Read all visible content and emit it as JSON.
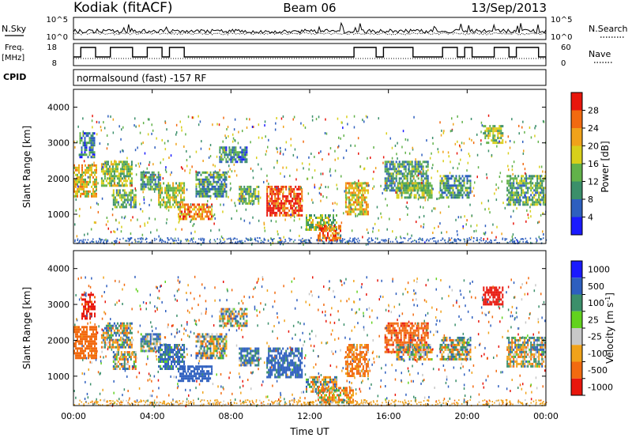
{
  "header": {
    "station": "Kodiak (fitACF)",
    "beam": "Beam 06",
    "date": "13/Sep/2013"
  },
  "summary_panels": {
    "nsky_label": "N.Sky",
    "nsearch_label": "N.Search",
    "freq_label_line1": "Freq.",
    "freq_label_line2": "[MHz]",
    "nave_label": "Nave",
    "cpid_label": "CPID",
    "cpid_value": "normalsound (fast) -157 RF",
    "noise_tick_top": "10^5",
    "noise_tick_bottom": "10^0",
    "freq_ticks": [
      "18",
      "8"
    ],
    "nave_ticks": [
      "60",
      "0"
    ]
  },
  "chart_data": [
    {
      "type": "heatmap",
      "panel": "power",
      "ylabel": "Slant Range [km]",
      "xlabel": "",
      "ylim": [
        180,
        4500
      ],
      "yticks": [
        "1000",
        "2000",
        "3000",
        "4000"
      ],
      "colorbar_label": "Power [dB]",
      "colorbar_ticks": [
        "4",
        "8",
        "12",
        "16",
        "20",
        "24",
        "28"
      ],
      "colorbar_range": [
        0,
        30
      ],
      "colors": [
        "#1a1aff",
        "#2e5fbf",
        "#3b8f6a",
        "#62b24a",
        "#d8cf1a",
        "#f0a21a",
        "#f26a10",
        "#e8160c"
      ],
      "patches": [
        {
          "t": [
            0.0,
            1.2
          ],
          "r": [
            1500,
            2400
          ],
          "v": 18
        },
        {
          "t": [
            0.3,
            1.1
          ],
          "r": [
            2600,
            3300
          ],
          "v": 8
        },
        {
          "t": [
            1.4,
            3.0
          ],
          "r": [
            1800,
            2500
          ],
          "v": 14
        },
        {
          "t": [
            2.0,
            3.2
          ],
          "r": [
            1200,
            1700
          ],
          "v": 12
        },
        {
          "t": [
            3.4,
            4.4
          ],
          "r": [
            1700,
            2200
          ],
          "v": 10
        },
        {
          "t": [
            4.3,
            5.6
          ],
          "r": [
            1200,
            1900
          ],
          "v": 16
        },
        {
          "t": [
            5.3,
            7.0
          ],
          "r": [
            900,
            1300
          ],
          "v": 22
        },
        {
          "t": [
            6.2,
            7.8
          ],
          "r": [
            1500,
            2200
          ],
          "v": 10
        },
        {
          "t": [
            7.4,
            8.8
          ],
          "r": [
            2500,
            2900
          ],
          "v": 8
        },
        {
          "t": [
            8.4,
            9.4
          ],
          "r": [
            1300,
            1800
          ],
          "v": 12
        },
        {
          "t": [
            9.8,
            11.6
          ],
          "r": [
            1000,
            1800
          ],
          "v": 27
        },
        {
          "t": [
            11.8,
            13.4
          ],
          "r": [
            600,
            1000
          ],
          "v": 14
        },
        {
          "t": [
            12.4,
            13.6
          ],
          "r": [
            300,
            700
          ],
          "v": 24
        },
        {
          "t": [
            13.8,
            15.0
          ],
          "r": [
            1000,
            1900
          ],
          "v": 18
        },
        {
          "t": [
            15.8,
            18.0
          ],
          "r": [
            1700,
            2500
          ],
          "v": 10
        },
        {
          "t": [
            16.4,
            18.2
          ],
          "r": [
            1500,
            1900
          ],
          "v": 14
        },
        {
          "t": [
            18.6,
            20.2
          ],
          "r": [
            1500,
            2100
          ],
          "v": 10
        },
        {
          "t": [
            20.8,
            21.8
          ],
          "r": [
            3000,
            3500
          ],
          "v": 14
        },
        {
          "t": [
            22.0,
            24.0
          ],
          "r": [
            1300,
            2100
          ],
          "v": 12
        }
      ]
    },
    {
      "type": "heatmap",
      "panel": "velocity",
      "ylabel": "Slant Range [km]",
      "xlabel": "Time UT",
      "ylim": [
        180,
        4500
      ],
      "yticks": [
        "1000",
        "2000",
        "3000",
        "4000"
      ],
      "xticks": [
        "00:00",
        "04:00",
        "08:00",
        "12:00",
        "16:00",
        "20:00",
        "00:00"
      ],
      "xlim_hours": [
        0,
        24
      ],
      "colorbar_label": "Velocity [m s^-1]",
      "colorbar_ticks": [
        "1000",
        "500",
        "100",
        "25",
        "-25",
        "-100",
        "-500",
        "-1000"
      ],
      "colors": [
        "#1a1aff",
        "#2e5fbf",
        "#3b8f6a",
        "#62d21e",
        "#c8c8c8",
        "#f0a21a",
        "#f26a10",
        "#e8160c"
      ],
      "patches": [
        {
          "t": [
            0.0,
            1.2
          ],
          "r": [
            1500,
            2400
          ],
          "v": -300
        },
        {
          "t": [
            0.4,
            1.1
          ],
          "r": [
            2600,
            3300
          ],
          "v": -600
        },
        {
          "t": [
            1.4,
            3.0
          ],
          "r": [
            1800,
            2500
          ],
          "v": 0
        },
        {
          "t": [
            2.0,
            3.2
          ],
          "r": [
            1200,
            1700
          ],
          "v": 0
        },
        {
          "t": [
            3.4,
            4.4
          ],
          "r": [
            1700,
            2200
          ],
          "v": 80
        },
        {
          "t": [
            4.3,
            5.6
          ],
          "r": [
            1200,
            1900
          ],
          "v": 150
        },
        {
          "t": [
            5.3,
            7.0
          ],
          "r": [
            900,
            1300
          ],
          "v": 300
        },
        {
          "t": [
            6.2,
            7.8
          ],
          "r": [
            1500,
            2200
          ],
          "v": 0
        },
        {
          "t": [
            7.4,
            8.8
          ],
          "r": [
            2400,
            2900
          ],
          "v": 0
        },
        {
          "t": [
            8.4,
            9.4
          ],
          "r": [
            1300,
            1800
          ],
          "v": 120
        },
        {
          "t": [
            9.8,
            11.6
          ],
          "r": [
            1000,
            1800
          ],
          "v": 200
        },
        {
          "t": [
            11.8,
            13.4
          ],
          "r": [
            600,
            1000
          ],
          "v": 0
        },
        {
          "t": [
            12.4,
            14.2
          ],
          "r": [
            250,
            700
          ],
          "v": -80
        },
        {
          "t": [
            13.8,
            15.0
          ],
          "r": [
            1000,
            1900
          ],
          "v": -150
        },
        {
          "t": [
            15.8,
            18.0
          ],
          "r": [
            1700,
            2500
          ],
          "v": -400
        },
        {
          "t": [
            16.4,
            18.2
          ],
          "r": [
            1500,
            1900
          ],
          "v": 0
        },
        {
          "t": [
            18.6,
            20.2
          ],
          "r": [
            1500,
            2100
          ],
          "v": 0
        },
        {
          "t": [
            20.8,
            21.8
          ],
          "r": [
            3000,
            3500
          ],
          "v": -700
        },
        {
          "t": [
            22.0,
            24.0
          ],
          "r": [
            1300,
            2100
          ],
          "v": 0
        }
      ]
    }
  ]
}
